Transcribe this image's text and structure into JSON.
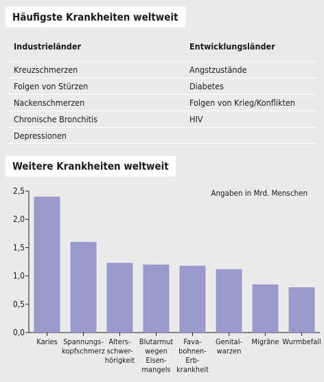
{
  "top_table": {
    "title": "Häufigste Krankheiten weltweit",
    "col_industrial": "Industrieländer",
    "col_developing": "Entwicklungsländer",
    "rows": [
      {
        "industrial": "Kreuzschmerzen",
        "developing": "Angstzustände"
      },
      {
        "industrial": "Folgen von Stürzen",
        "developing": "Diabetes"
      },
      {
        "industrial": "Nackenschmerzen",
        "developing": "Folgen von Krieg/Konflikten"
      },
      {
        "industrial": "Chronische Bronchitis",
        "developing": "HIV"
      },
      {
        "industrial": "Depressionen",
        "developing": ""
      }
    ]
  },
  "chart_title": "Weitere Krankheiten weltweit",
  "chart_data": {
    "type": "bar",
    "title": "Weitere Krankheiten weltweit",
    "note": "Angaben in Mrd. Menschen",
    "categories": [
      [
        "Karies"
      ],
      [
        "Spannungs-",
        "kopfschmerz"
      ],
      [
        "Alters-",
        "schwer-",
        "hörigkeit"
      ],
      [
        "Blutarmut",
        "wegen",
        "Eisen-",
        "mangels"
      ],
      [
        "Fava-",
        "bohnen-",
        "Erb-",
        "krankheit"
      ],
      [
        "Genital-",
        "warzen"
      ],
      [
        "Migräne"
      ],
      [
        "Wurmbefall"
      ]
    ],
    "values": [
      2.4,
      1.6,
      1.23,
      1.2,
      1.18,
      1.12,
      0.85,
      0.8
    ],
    "yticks": [
      "0,0",
      "0,5",
      "1,0",
      "1,5",
      "2,0",
      "2,5"
    ],
    "ylim": [
      0,
      2.5
    ],
    "grid": false,
    "bar_color": "#9999cc"
  }
}
